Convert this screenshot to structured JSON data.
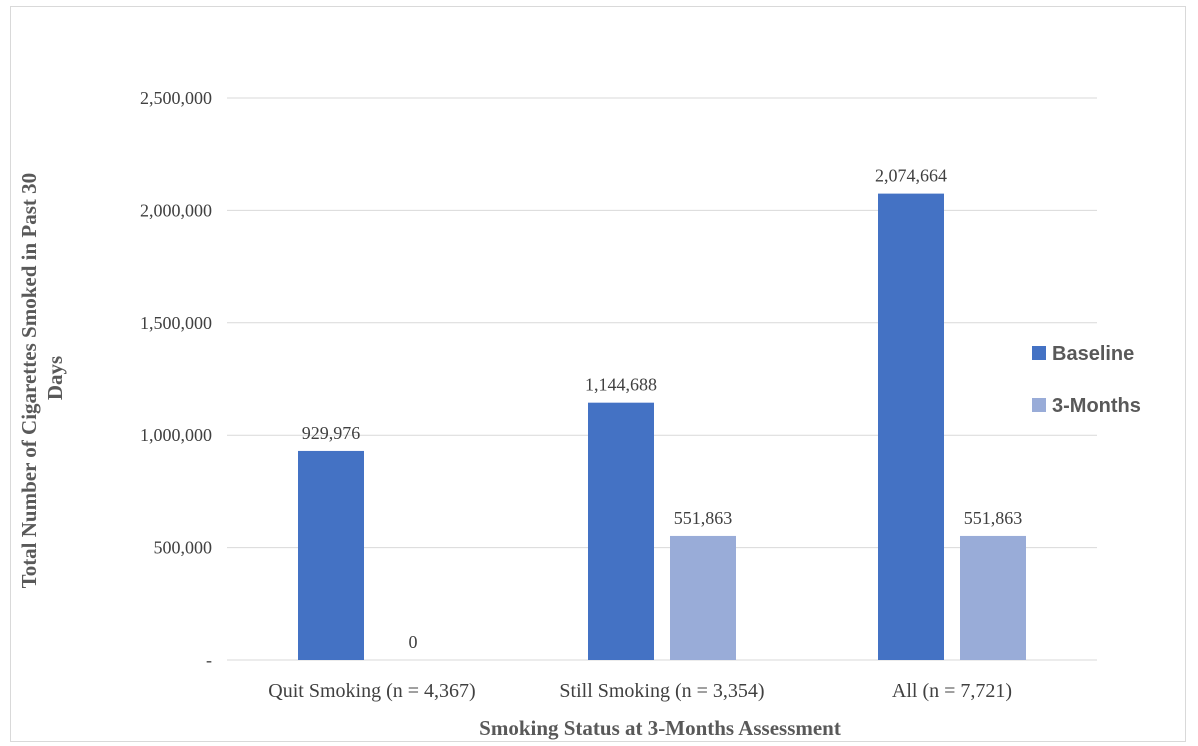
{
  "chart_data": {
    "type": "bar",
    "title": "",
    "xlabel": "Smoking Status at 3-Months Assessment",
    "ylabel": "Total Number of Cigarettes Smoked in Past 30 Days",
    "ylim": [
      0,
      2500000
    ],
    "yticks": [
      0,
      500000,
      1000000,
      1500000,
      2000000,
      2500000
    ],
    "ytick_labels": [
      "-",
      "500,000",
      "1,000,000",
      "1,500,000",
      "2,000,000",
      "2,500,000"
    ],
    "categories": [
      "Quit Smoking (n = 4,367)",
      "Still Smoking (n = 3,354)",
      "All (n = 7,721)"
    ],
    "series": [
      {
        "name": "Baseline",
        "color": "#4472c4",
        "values": [
          929976,
          1144688,
          2074664
        ],
        "labels": [
          "929,976",
          "1,144,688",
          "2,074,664"
        ]
      },
      {
        "name": "3-Months",
        "color": "#99acd8",
        "values": [
          0,
          551863,
          551863
        ],
        "labels": [
          "0",
          "551,863",
          "551,863"
        ]
      }
    ],
    "grid": true,
    "legend_position": "right"
  }
}
